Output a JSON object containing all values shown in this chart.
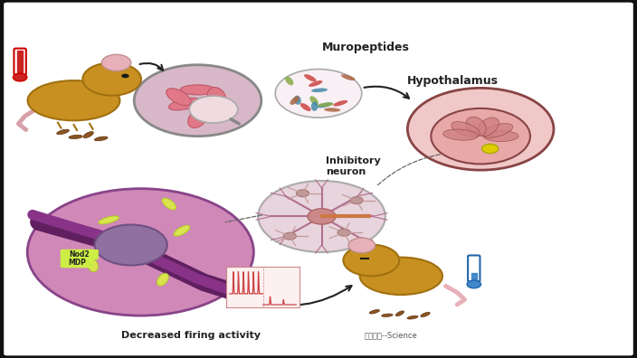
{
  "background_color": "#ffffff",
  "outer_bg": "#111111",
  "labels": {
    "muropeptides": "Muropeptides",
    "hypothalamus": "Hypothalamus",
    "inhibitory_neuron": "Inhibitory\nneuron",
    "decreased_firing": "Decreased firing activity",
    "source": "图片来源--Science",
    "nod2": "Nod2",
    "mdp": "MDP"
  },
  "colors": {
    "mouse_body": "#c89020",
    "mouse_edge": "#a07010",
    "ear": "#e8b0b8",
    "ear_edge": "#c09090",
    "eye": "#1a1a1a",
    "tail1": "#d8a0a8",
    "tail2": "#e8b0b8",
    "intestine_bg": "#d8b8c8",
    "intestine_pink": "#e07888",
    "intestine_edge": "#c05868",
    "magnify_bg": "#f0dce0",
    "murop_bg": "#f8f0f4",
    "murop_colors": [
      "#cc4444",
      "#4488aa",
      "#88aa44",
      "#aa6644"
    ],
    "hypo_bg": "#f0c8c8",
    "hypo_edge": "#884444",
    "hypo_inner": "#e8a8a8",
    "hypo_fold": "#d08080",
    "hypo_dot": "#ddcc00",
    "neuron_bg": "#e8d4dc",
    "neuron_dendrite": "#b07090",
    "neuron_body": "#cc8888",
    "neuron_body_edge": "#aa6666",
    "axon": "#cc7744",
    "sec_neuron": "#c09898",
    "sec_neuron_edge": "#aa7777",
    "cell_bg": "#d088b8",
    "cell_edge": "#884488",
    "nucleus_bg": "#9070a0",
    "nucleus_edge": "#705080",
    "organelle": "#ddee44",
    "organelle_edge": "#aacc22",
    "vessel_dark": "#602060",
    "vessel_mid": "#883388",
    "nod2_bg": "#ccee44",
    "pellet": "#885522",
    "pellet_edge": "#663311",
    "therm_red": "#cc2222",
    "therm_red_edge": "#cc0000",
    "therm_blue": "#4488cc",
    "therm_blue_edge": "#2266aa",
    "arrow": "#222222",
    "arrow_dashed": "#666666",
    "text_dark": "#222222",
    "text_source": "#555555",
    "inset_bg": "#fdf0f0",
    "inset_spike": "#cc4444",
    "outer_black": "#111111"
  }
}
